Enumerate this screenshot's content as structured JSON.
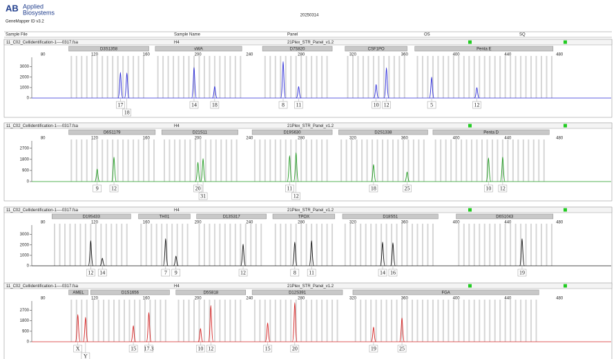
{
  "header": {
    "logo_line1": "Applied",
    "logo_line2": "Biosystems",
    "app": "GeneMapper ID v3.2",
    "date": "20250314",
    "columns": [
      "Sample File",
      "Sample Name",
      "Panel",
      "OS",
      "SQ"
    ]
  },
  "chart_data": [
    {
      "type": "line",
      "sample_file": "11_C02_Cellidentification-1----0317.fsa",
      "sample_name": "H4",
      "panel": "21Plex_STR_Panel_v1.2",
      "color": "#2a2ad8",
      "xlim": [
        66,
        520
      ],
      "xticks": [
        80,
        120,
        160,
        200,
        240,
        280,
        320,
        360,
        400,
        440,
        480
      ],
      "ylim": [
        0,
        3900
      ],
      "yticks": [
        0,
        1000,
        2000,
        3000
      ],
      "loci": [
        {
          "name": "D3S1358",
          "range": [
            100,
            162
          ]
        },
        {
          "name": "vWA",
          "range": [
            167,
            234
          ]
        },
        {
          "name": "D7S820",
          "range": [
            250,
            304
          ]
        },
        {
          "name": "CSF1PO",
          "range": [
            314,
            362
          ]
        },
        {
          "name": "Penta E",
          "range": [
            368,
            475
          ]
        }
      ],
      "peaks": {
        "x": [
          140,
          145,
          197,
          213,
          266,
          278,
          338,
          346,
          381,
          416
        ],
        "values": [
          2450,
          2400,
          2930,
          1100,
          3500,
          1100,
          1300,
          2900,
          2000,
          1000
        ],
        "labels": [
          "17",
          "18",
          "14",
          "18",
          "8",
          "11",
          "10",
          "12",
          "5",
          "12"
        ]
      }
    },
    {
      "type": "line",
      "sample_file": "11_C02_Cellidentification-1----0317.fsa",
      "sample_name": "H4",
      "panel": "21Plex_STR_Panel_v1.2",
      "color": "#1f9a1f",
      "xlim": [
        66,
        520
      ],
      "xticks": [
        80,
        120,
        160,
        200,
        240,
        280,
        320,
        360,
        400,
        440,
        480
      ],
      "ylim": [
        0,
        3300
      ],
      "yticks": [
        0,
        900,
        1800,
        2700
      ],
      "loci": [
        {
          "name": "D6S1179",
          "range": [
            100,
            167
          ]
        },
        {
          "name": "D21S11",
          "range": [
            172,
            231
          ]
        },
        {
          "name": "D19S630",
          "range": [
            242,
            304
          ]
        },
        {
          "name": "D2S1338",
          "range": [
            309,
            378
          ]
        },
        {
          "name": "Penta D",
          "range": [
            382,
            472
          ]
        }
      ],
      "peaks": {
        "x": [
          122,
          135,
          200,
          204,
          271,
          276,
          336,
          362,
          425,
          436
        ],
        "values": [
          1020,
          1980,
          1560,
          1860,
          2100,
          2340,
          1380,
          780,
          1920,
          1980
        ],
        "labels": [
          "9",
          "12",
          "20",
          "31",
          "11",
          "12",
          "18",
          "25",
          "10",
          "12"
        ]
      }
    },
    {
      "type": "line",
      "sample_file": "11_C02_Cellidentification-1----0317.fsa",
      "sample_name": "H4",
      "panel": "21Plex_STR_Panel_v1.2",
      "color": "#111111",
      "xlim": [
        66,
        520
      ],
      "xticks": [
        80,
        120,
        160,
        200,
        240,
        280,
        320,
        360,
        400,
        440,
        480
      ],
      "ylim": [
        0,
        3900
      ],
      "yticks": [
        0,
        1000,
        2000,
        3000
      ],
      "loci": [
        {
          "name": "D19S433",
          "range": [
            87,
            148
          ]
        },
        {
          "name": "TH01",
          "range": [
            154,
            194
          ]
        },
        {
          "name": "D13S317",
          "range": [
            199,
            253
          ]
        },
        {
          "name": "TPOX",
          "range": [
            258,
            306
          ]
        },
        {
          "name": "D18S51",
          "range": [
            312,
            386
          ]
        },
        {
          "name": "D6S1043",
          "range": [
            400,
            475
          ]
        }
      ],
      "peaks": {
        "x": [
          117,
          126,
          175,
          183,
          235,
          275,
          288,
          343,
          351,
          451
        ],
        "values": [
          2400,
          730,
          2600,
          930,
          2070,
          2270,
          2400,
          2270,
          2200,
          2600
        ],
        "labels": [
          "12",
          "14",
          "7",
          "9",
          "12",
          "8",
          "11",
          "14",
          "16",
          "19"
        ]
      }
    },
    {
      "type": "line",
      "sample_file": "11_C02_Cellidentification-1----0317.fsa",
      "sample_name": "H4",
      "panel": "21Plex_STR_Panel_v1.2",
      "color": "#d42020",
      "xlim": [
        66,
        520
      ],
      "xticks": [
        80,
        120,
        160,
        200,
        240,
        280,
        320,
        360,
        400,
        440,
        480
      ],
      "ylim": [
        0,
        3500
      ],
      "yticks": [
        0,
        900,
        1800,
        2700
      ],
      "loci": [
        {
          "name": "AMEL",
          "range": [
            100,
            115
          ]
        },
        {
          "name": "D1S1656",
          "range": [
            117,
            178
          ]
        },
        {
          "name": "D5S818",
          "range": [
            183,
            237
          ]
        },
        {
          "name": "D12S391",
          "range": [
            242,
            312
          ]
        },
        {
          "name": "FGA",
          "range": [
            320,
            464
          ]
        }
      ],
      "peaks": {
        "x": [
          107,
          113,
          150,
          162,
          202,
          210,
          254,
          275,
          336,
          358
        ],
        "values": [
          2340,
          2100,
          1380,
          2520,
          1140,
          3120,
          1620,
          3360,
          1260,
          2040
        ],
        "labels": [
          "X",
          "Y",
          "15",
          "17.3",
          "10",
          "12",
          "15",
          "20",
          "19",
          "25"
        ]
      }
    }
  ]
}
